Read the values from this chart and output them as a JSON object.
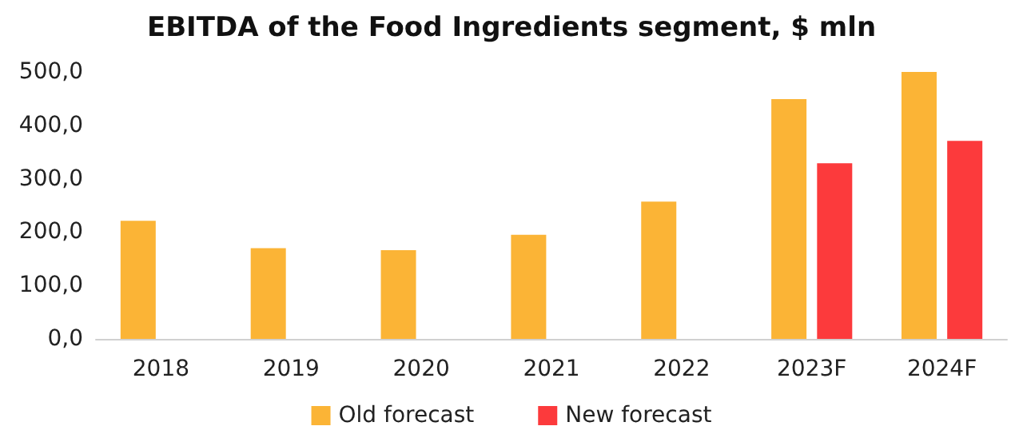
{
  "chart_data": {
    "type": "bar",
    "title": "EBITDA of the Food Ingredients segment, $ mln",
    "categories": [
      "2018",
      "2019",
      "2020",
      "2021",
      "2022",
      "2023F",
      "2024F"
    ],
    "series": [
      {
        "name": "Old forecast",
        "color": "#fbb436",
        "values": [
          221,
          170,
          166,
          195,
          257,
          449,
          500
        ]
      },
      {
        "name": "New forecast",
        "color": "#fc3a3c",
        "values": [
          null,
          null,
          null,
          null,
          null,
          329,
          371
        ]
      }
    ],
    "ylim": [
      0,
      500
    ],
    "yticks": [
      {
        "value": 0,
        "label": "0,0"
      },
      {
        "value": 100,
        "label": "100,0"
      },
      {
        "value": 200,
        "label": "200,0"
      },
      {
        "value": 300,
        "label": "300,0"
      },
      {
        "value": 400,
        "label": "400,0"
      },
      {
        "value": 500,
        "label": "500,0"
      }
    ],
    "grid": false,
    "legend": "bottom"
  }
}
